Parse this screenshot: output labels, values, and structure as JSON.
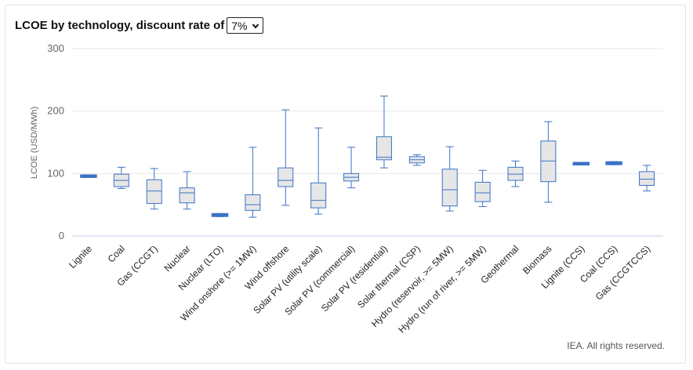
{
  "header": {
    "title": "LCOE by technology, discount rate of",
    "selected_rate": "7%"
  },
  "footer": {
    "credit": "IEA. All rights reserved."
  },
  "colors": {
    "box_fill": "#e6e6e6",
    "box_stroke": "#3b73c6",
    "grid": "#e6e6e6",
    "baseline": "#c5cde0",
    "axis_text": "#666666"
  },
  "chart_data": {
    "type": "boxplot",
    "ylabel": "LCOE (USD/MWh)",
    "xlabel": "",
    "ylim": [
      0,
      300
    ],
    "yticks": [
      0,
      100,
      200,
      300
    ],
    "grid": true,
    "categories": [
      "Lignite",
      "Coal",
      "Gas (CCGT)",
      "Nuclear",
      "Nuclear (LTO)",
      "Wind onshore (>= 1MW)",
      "Wind offshore",
      "Solar PV (utility scale)",
      "Solar PV (commercial)",
      "Solar PV (residential)",
      "Solar thermal (CSP)",
      "Hydro (reservoir, >= 5MW)",
      "Hydro (run of river, >= 5MW)",
      "Geothermal",
      "Biomass",
      "Lignite (CCS)",
      "Coal (CCS)",
      "Gas (CCGTCCS)"
    ],
    "boxes": [
      {
        "min": 94,
        "q1": 95,
        "median": 96,
        "q3": 97,
        "max": 97
      },
      {
        "min": 76,
        "q1": 79,
        "median": 89,
        "q3": 99,
        "max": 110
      },
      {
        "min": 43,
        "q1": 52,
        "median": 72,
        "q3": 90,
        "max": 108
      },
      {
        "min": 43,
        "q1": 53,
        "median": 69,
        "q3": 77,
        "max": 103
      },
      {
        "min": 31,
        "q1": 32,
        "median": 33,
        "q3": 35,
        "max": 36
      },
      {
        "min": 30,
        "q1": 41,
        "median": 50,
        "q3": 66,
        "max": 142
      },
      {
        "min": 49,
        "q1": 79,
        "median": 89,
        "q3": 109,
        "max": 202
      },
      {
        "min": 35,
        "q1": 45,
        "median": 57,
        "q3": 85,
        "max": 173
      },
      {
        "min": 77,
        "q1": 88,
        "median": 94,
        "q3": 100,
        "max": 142
      },
      {
        "min": 109,
        "q1": 122,
        "median": 126,
        "q3": 159,
        "max": 224
      },
      {
        "min": 113,
        "q1": 117,
        "median": 122,
        "q3": 127,
        "max": 130
      },
      {
        "min": 40,
        "q1": 48,
        "median": 74,
        "q3": 107,
        "max": 143
      },
      {
        "min": 47,
        "q1": 55,
        "median": 69,
        "q3": 86,
        "max": 105
      },
      {
        "min": 79,
        "q1": 89,
        "median": 99,
        "q3": 110,
        "max": 120
      },
      {
        "min": 54,
        "q1": 87,
        "median": 120,
        "q3": 152,
        "max": 183
      },
      {
        "min": 117,
        "q1": 117,
        "median": 117,
        "q3": 117,
        "max": 117
      },
      {
        "min": 114,
        "q1": 115,
        "median": 116,
        "q3": 118,
        "max": 119
      },
      {
        "min": 72,
        "q1": 81,
        "median": 91,
        "q3": 103,
        "max": 113
      }
    ]
  }
}
